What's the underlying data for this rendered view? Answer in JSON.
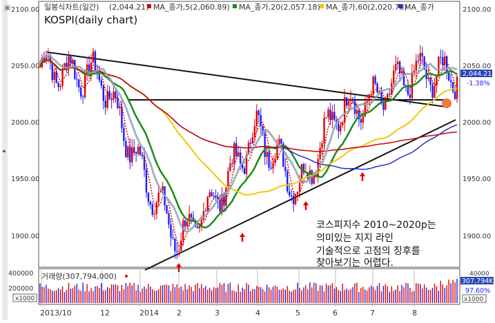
{
  "header": {
    "title": "일봉식차트(일간)",
    "last": "(2,044.21)",
    "legend": [
      {
        "label": "MA_종가,5(2,060.89)",
        "color": "#d40000"
      },
      {
        "label": "MA_종가,20(2,057.18)",
        "color": "#1a8a1a"
      },
      {
        "label": "MA_종가,60(2,020.78)",
        "color": "#f0c800"
      },
      {
        "label": "MA_종가",
        "color": "#1e2bd6"
      }
    ]
  },
  "overlay_title": "KOSPI(daily chart)",
  "annotation": [
    "코스피지수 2010~2020p는",
    "의미있는 지지 라인",
    "기술적으로 고점의 징후를",
    "찾아보기는 어렵다."
  ],
  "price_axis": {
    "ticks": [
      "2100.00",
      "2050.00",
      "2000.00",
      "1950.00",
      "1900.00"
    ]
  },
  "price_label": {
    "value": "2,044.21",
    "change": "-1.38%"
  },
  "volume": {
    "title": "거래량(307,794,000)",
    "ticks": [
      "400000",
      "200000"
    ],
    "unit": "x1000",
    "last_label": "307,794K",
    "pct": "97.60%",
    "right_top": "40000"
  },
  "x_axis": {
    "labels": [
      "2013/10",
      "12",
      "2014",
      "2",
      "3",
      "4",
      "5",
      "6",
      "7",
      "8"
    ]
  },
  "colors": {
    "up": "#e00000",
    "down": "#1a1aff",
    "ma5": "#d40000",
    "ma20": "#1a8a1a",
    "ma60": "#f0c800",
    "ma120": "#1e2bd6",
    "ma240": "#cc0000"
  },
  "chart_data": {
    "type": "line",
    "title": "KOSPI(daily chart)",
    "ylim": [
      1880,
      2105
    ],
    "x": [
      "2013/10",
      "12",
      "2014",
      "2",
      "3",
      "4",
      "5",
      "6",
      "7",
      "8"
    ],
    "series": [
      {
        "name": "종가",
        "values": [
          2050,
          2040,
          1960,
          1895,
          1935,
          1995,
          1940,
          2010,
          2020,
          2044
        ]
      }
    ],
    "volume": {
      "ylim": [
        0,
        400000
      ],
      "values": [
        250000,
        240000,
        220000,
        300000,
        260000,
        250000,
        240000,
        230000,
        260000,
        307794
      ]
    },
    "trendlines": [
      {
        "name": "resistance",
        "from": [
          "2013/10",
          2063
        ],
        "to": [
          "8",
          2012
        ]
      },
      {
        "name": "horizontal",
        "from": [
          "12",
          2020
        ],
        "to": [
          "8",
          2020
        ]
      },
      {
        "name": "support",
        "from": [
          "2",
          1870
        ],
        "to": [
          "8",
          2003
        ]
      }
    ]
  }
}
